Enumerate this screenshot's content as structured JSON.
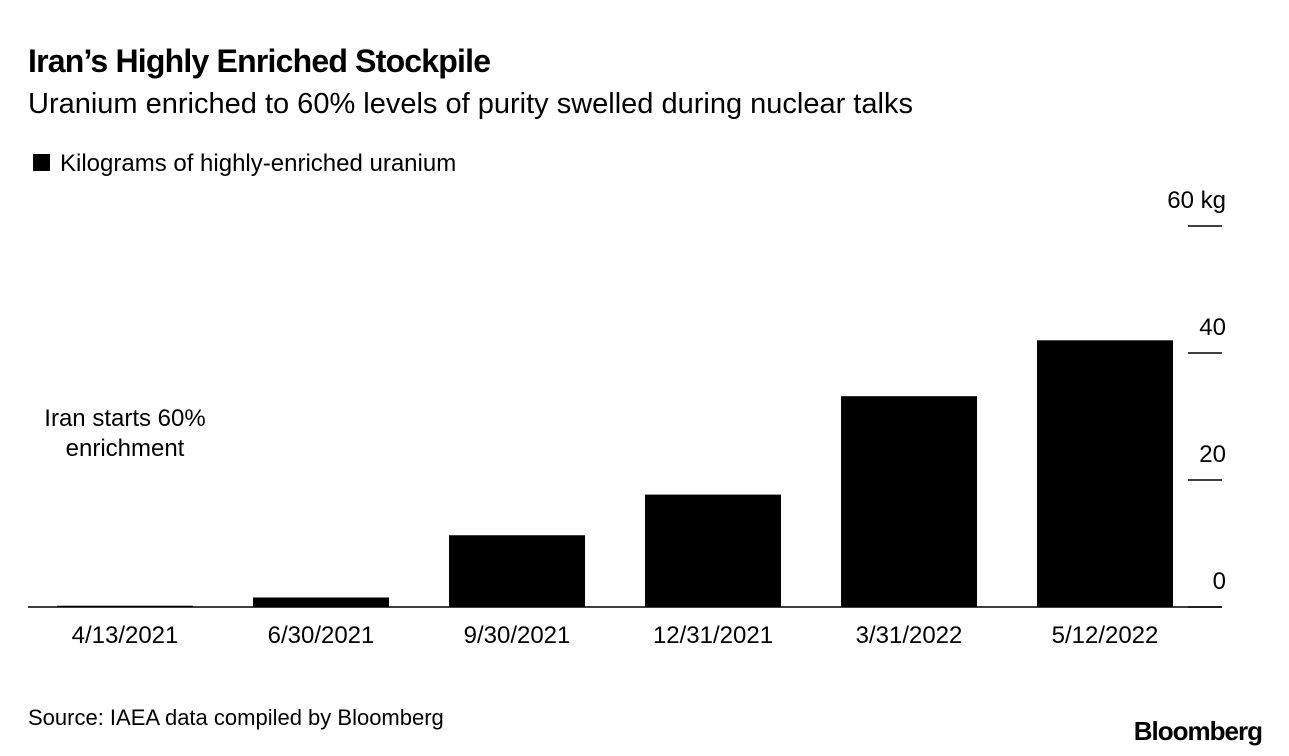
{
  "chart_data": {
    "type": "bar",
    "title": "Iran’s Highly Enriched Stockpile",
    "subtitle": "Uranium enriched to 60% levels of purity swelled during nuclear talks",
    "series": [
      {
        "name": "Kilograms of highly-enriched uranium",
        "color": "#000000",
        "values": [
          0.2,
          1.5,
          11.3,
          17.7,
          33.2,
          42
        ]
      }
    ],
    "categories": [
      "4/13/2021",
      "6/30/2021",
      "9/30/2021",
      "12/31/2021",
      "3/31/2022",
      "5/12/2022"
    ],
    "ylim": [
      0,
      60
    ],
    "yticks": [
      0,
      20,
      40,
      {
        "value": 60,
        "label": "60 kg"
      }
    ],
    "annotation": [
      "Iran starts 60%",
      "enrichment"
    ],
    "source": "Source: IAEA data compiled by Bloomberg",
    "logo": "Bloomberg"
  }
}
